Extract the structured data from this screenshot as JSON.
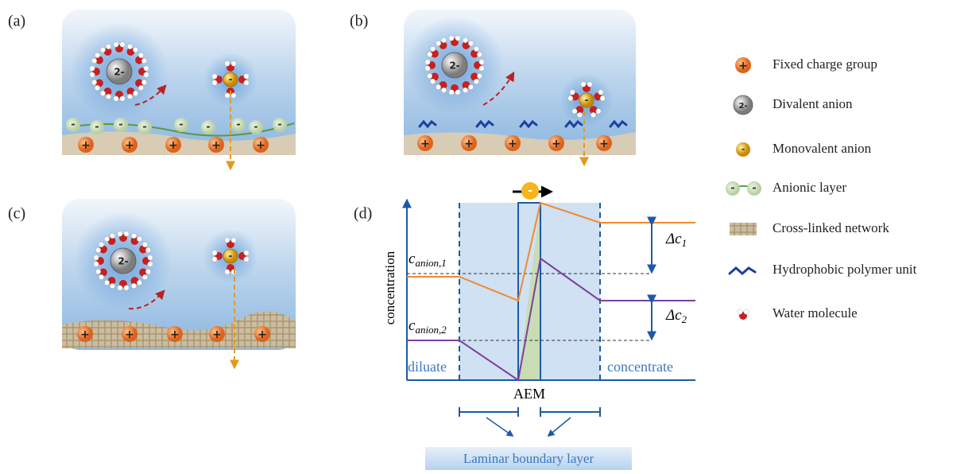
{
  "panels": {
    "a": "(a)",
    "b": "(b)",
    "c": "(c)",
    "d": "(d)"
  },
  "ions": {
    "divalent": "2-",
    "monovalent": "-",
    "fixed_charge": "+",
    "anionic": "-"
  },
  "legend": [
    "Fixed charge group",
    "Divalent anion",
    "Monovalent anion",
    "Anionic layer",
    "Cross-linked network",
    "Hydrophobic polymer unit",
    "Water molecule"
  ],
  "plot_d": {
    "y_axis_label": "concentration",
    "c1": {
      "base": "c",
      "sub": "anion,1"
    },
    "c2": {
      "base": "c",
      "sub": "anion,2"
    },
    "dc1": {
      "base": "Δc",
      "sub": "1"
    },
    "dc2": {
      "base": "Δc",
      "sub": "2"
    },
    "left_region": "diluate",
    "right_region": "concentrate",
    "membrane": "AEM",
    "boundary_layer": "Laminar boundary layer"
  }
}
